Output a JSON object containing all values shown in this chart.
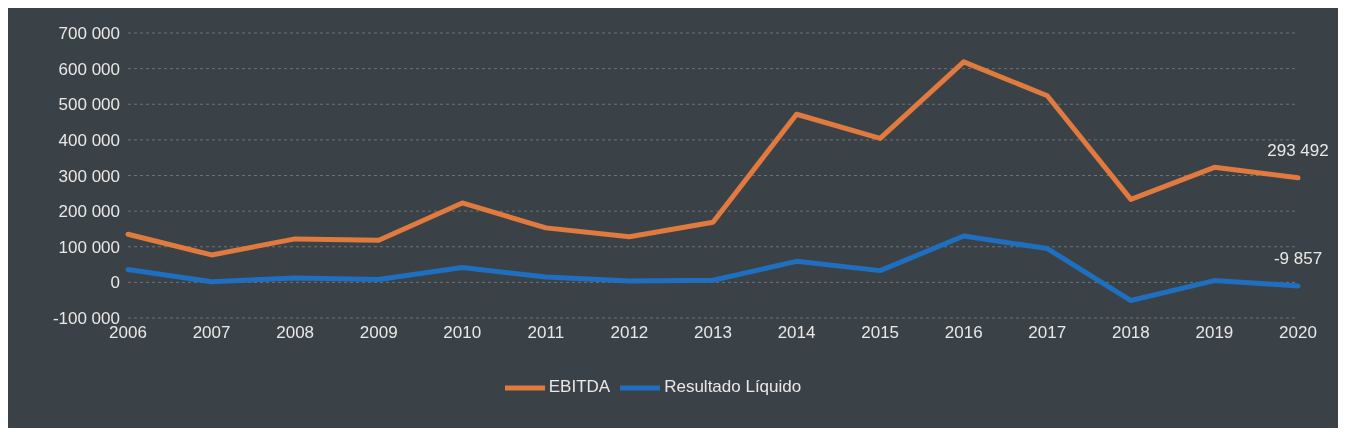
{
  "chart_data": {
    "type": "line",
    "categories": [
      "2006",
      "2007",
      "2008",
      "2009",
      "2010",
      "2011",
      "2012",
      "2013",
      "2014",
      "2015",
      "2016",
      "2017",
      "2018",
      "2019",
      "2020"
    ],
    "series": [
      {
        "name": "Resultado Líquido",
        "color": "#1f6fc0",
        "values": [
          36000,
          2000,
          12000,
          8000,
          42000,
          15000,
          4000,
          6000,
          59000,
          33000,
          130000,
          95000,
          -51000,
          5000,
          -9857
        ],
        "value_labels": [
          null,
          null,
          null,
          null,
          null,
          null,
          null,
          null,
          null,
          null,
          null,
          null,
          null,
          null,
          "-9 857"
        ]
      },
      {
        "name": "EBITDA",
        "color": "#e07a3e",
        "values": [
          135000,
          77000,
          122000,
          118000,
          223000,
          153000,
          128000,
          169000,
          472000,
          404000,
          619000,
          524000,
          233000,
          323000,
          293492
        ],
        "value_labels": [
          null,
          null,
          null,
          null,
          null,
          null,
          null,
          null,
          null,
          null,
          null,
          null,
          null,
          null,
          "293 492"
        ]
      }
    ],
    "ylim": [
      -100000,
      700000
    ],
    "yticks": [
      {
        "value": -100000,
        "label": "-100 000"
      },
      {
        "value": 0,
        "label": "0"
      },
      {
        "value": 100000,
        "label": "100 000"
      },
      {
        "value": 200000,
        "label": "200 000"
      },
      {
        "value": 300000,
        "label": "300 000"
      },
      {
        "value": 400000,
        "label": "400 000"
      },
      {
        "value": 500000,
        "label": "500 000"
      },
      {
        "value": 600000,
        "label": "600 000"
      },
      {
        "value": 700000,
        "label": "700 000"
      }
    ],
    "grid": "y",
    "legend": "bottom",
    "marker": "none",
    "line_style": "solid"
  }
}
